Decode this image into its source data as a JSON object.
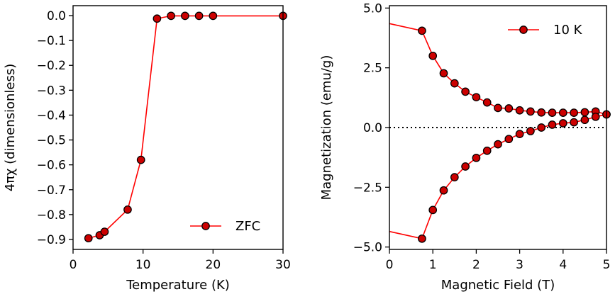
{
  "chart_data": [
    {
      "type": "line",
      "xlabel": "Temperature (K)",
      "ylabel": "4πχ (dimensionless)",
      "xlim": [
        0,
        30
      ],
      "ylim": [
        -0.94,
        0.04
      ],
      "xticks": [
        0,
        10,
        20,
        30
      ],
      "xtick_labels": [
        "0",
        "10",
        "20",
        "30"
      ],
      "yticks": [
        0.0,
        -0.1,
        -0.2,
        -0.3,
        -0.4,
        -0.5,
        -0.6,
        -0.7,
        -0.8,
        -0.9
      ],
      "ytick_labels": [
        "0.0",
        "−0.1",
        "−0.2",
        "−0.3",
        "−0.4",
        "−0.5",
        "−0.6",
        "−0.7",
        "−0.8",
        "−0.9"
      ],
      "legend_placement": "lower-right",
      "grid": false,
      "series": [
        {
          "name": "ZFC",
          "color": "#ff0000",
          "marker_color": "#cc0000",
          "x": [
            2.2,
            3.8,
            4.5,
            7.8,
            9.7,
            12.0,
            14.0,
            16.0,
            18.0,
            20.0,
            30.0
          ],
          "y": [
            -0.895,
            -0.883,
            -0.869,
            -0.78,
            -0.58,
            -0.012,
            -0.001,
            -0.001,
            -0.001,
            -0.001,
            -0.001
          ]
        }
      ]
    },
    {
      "type": "line",
      "xlabel": "Magnetic Field (T)",
      "ylabel": "Magnetization (emu/g)",
      "xlim": [
        0,
        5
      ],
      "ylim": [
        -5.1,
        5.1
      ],
      "xticks": [
        0,
        1,
        2,
        3,
        4,
        5
      ],
      "xtick_labels": [
        "0",
        "1",
        "2",
        "3",
        "4",
        "5"
      ],
      "yticks": [
        5.0,
        2.5,
        0.0,
        -2.5,
        -5.0
      ],
      "ytick_labels": [
        "5.0",
        "2.5",
        "0.0",
        "−2.5",
        "−5.0"
      ],
      "legend_placement": "upper-right",
      "grid": false,
      "zero_line": true,
      "series": [
        {
          "name": "10 K",
          "color": "#ff0000",
          "marker_color": "#cc0000",
          "branches": [
            {
              "x": [
                0.0,
                0.75,
                1.0,
                1.25,
                1.5,
                1.75,
                2.0,
                2.25,
                2.5,
                2.75,
                3.0,
                3.25,
                3.5,
                3.75,
                4.0,
                4.25,
                4.5,
                4.75,
                5.0
              ],
              "y": [
                4.35,
                4.05,
                3.0,
                2.27,
                1.85,
                1.5,
                1.27,
                1.05,
                0.82,
                0.8,
                0.72,
                0.67,
                0.63,
                0.62,
                0.62,
                0.62,
                0.64,
                0.67,
                0.55
              ],
              "markers_from_index": 1
            },
            {
              "x": [
                0.0,
                0.75,
                1.0,
                1.25,
                1.5,
                1.75,
                2.0,
                2.25,
                2.5,
                2.75,
                3.0,
                3.25,
                3.5,
                3.75,
                4.0,
                4.25,
                4.5,
                4.75,
                5.0
              ],
              "y": [
                -4.35,
                -4.65,
                -3.45,
                -2.63,
                -2.08,
                -1.63,
                -1.27,
                -0.97,
                -0.7,
                -0.48,
                -0.27,
                -0.15,
                0.0,
                0.12,
                0.18,
                0.22,
                0.32,
                0.45,
                0.55
              ],
              "markers_from_index": 1
            }
          ]
        }
      ]
    }
  ]
}
